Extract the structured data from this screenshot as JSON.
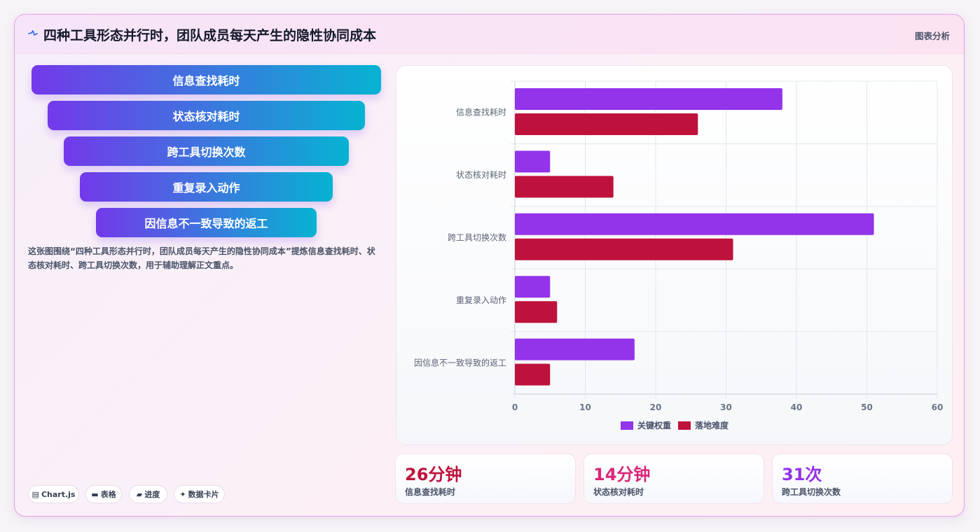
{
  "header": {
    "icon": "pulse-icon",
    "title": "四种工具形态并行时，团队成员每天产生的隐性协同成本",
    "tag": "图表分析"
  },
  "funnel": {
    "colors": [
      "#7339ea",
      "#06b3d2"
    ],
    "steps": [
      {
        "label": "信息查找耗时"
      },
      {
        "label": "状态核对耗时"
      },
      {
        "label": "跨工具切换次数"
      },
      {
        "label": "重复录入动作"
      },
      {
        "label": "因信息不一致导致的返工"
      }
    ]
  },
  "description": "这张图围绕“四种工具形态并行时，团队成员每天产生的隐性协同成本”提炼信息查找耗时、状态核对耗时、跨工具切换次数，用于辅助理解正文重点。",
  "pills": [
    {
      "icon": "chart-icon",
      "label": "Chart.js"
    },
    {
      "icon": "table-icon",
      "label": "表格"
    },
    {
      "icon": "progress-icon",
      "label": "进度"
    },
    {
      "icon": "sparkle-icon",
      "label": "数据卡片"
    }
  ],
  "chart_data": {
    "type": "bar",
    "orientation": "horizontal",
    "categories": [
      "信息查找耗时",
      "状态核对耗时",
      "跨工具切换次数",
      "重复录入动作",
      "因信息不一致导致的返工"
    ],
    "series": [
      {
        "name": "关键权重",
        "color": "#9333ea",
        "values": [
          38,
          5,
          51,
          5,
          17
        ]
      },
      {
        "name": "落地难度",
        "color": "#be123c",
        "values": [
          26,
          14,
          31,
          6,
          5
        ]
      }
    ],
    "xlim": [
      0,
      60
    ],
    "xticks": [
      "0",
      "10",
      "20",
      "30",
      "40",
      "50",
      "60"
    ],
    "grid": true,
    "legend": "bottom"
  },
  "stats": [
    {
      "value": "26分钟",
      "label": "信息查找耗时",
      "color": "#be123c"
    },
    {
      "value": "14分钟",
      "label": "状态核对耗时",
      "color": "#db2777"
    },
    {
      "value": "31次",
      "label": "跨工具切换次数",
      "color": "#9333ea"
    }
  ]
}
